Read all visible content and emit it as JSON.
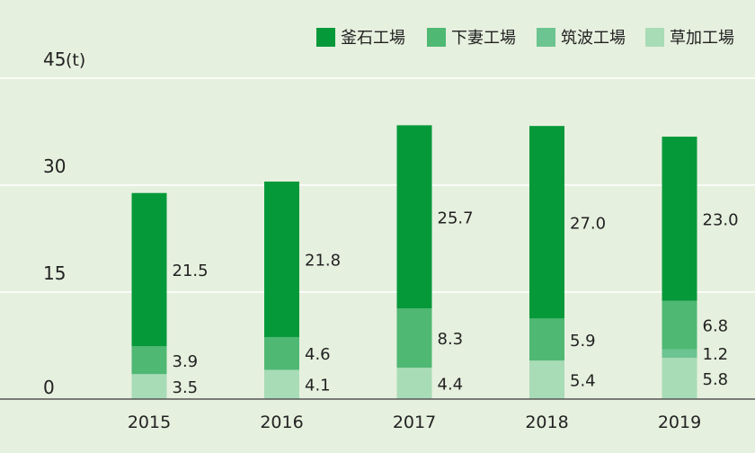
{
  "chart_data": {
    "type": "bar",
    "stacked": true,
    "categories": [
      "2015",
      "2016",
      "2017",
      "2018",
      "2019"
    ],
    "series": [
      {
        "name": "草加工場",
        "color": "#a8dcb6",
        "values": [
          3.5,
          4.1,
          4.4,
          5.4,
          5.8
        ]
      },
      {
        "name": "筑波工場",
        "color": "#6cc490",
        "values": [
          0,
          0,
          0,
          0,
          1.2
        ]
      },
      {
        "name": "下妻工場",
        "color": "#4fb873",
        "values": [
          3.9,
          4.6,
          8.3,
          5.9,
          6.8
        ]
      },
      {
        "name": "釜石工場",
        "color": "#06993a",
        "values": [
          21.5,
          21.8,
          25.7,
          27.0,
          23.0
        ]
      }
    ],
    "data_labels": [
      [
        "3.5",
        "",
        "3.9",
        "21.5"
      ],
      [
        "4.1",
        "",
        "4.6",
        "21.8"
      ],
      [
        "4.4",
        "",
        "8.3",
        "25.7"
      ],
      [
        "5.4",
        "",
        "5.9",
        "27.0"
      ],
      [
        "5.8",
        "1.2",
        "6.8",
        "23.0"
      ]
    ],
    "legend_order": [
      3,
      2,
      1,
      0
    ],
    "legend_position": "top-right",
    "y_ticks": [
      "0",
      "15",
      "30",
      "45"
    ],
    "y_tick_values": [
      0,
      15,
      30,
      45
    ],
    "unit": "(t)",
    "ylim": [
      0,
      45
    ],
    "grid": true,
    "grid_color": "#ffffff",
    "axis_color": "#555555",
    "title": "",
    "xlabel": "",
    "ylabel": ""
  }
}
